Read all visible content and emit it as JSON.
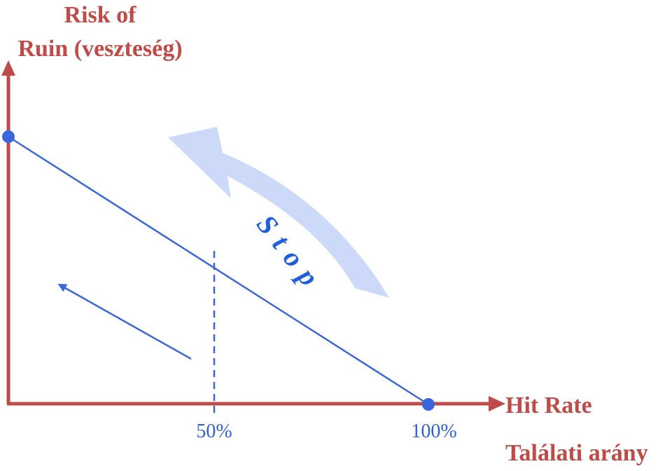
{
  "title": {
    "line1": "Risk of",
    "line2": "Ruin (veszteség)"
  },
  "x_axis": {
    "label": "Hit Rate",
    "sublabel": "Találati arány"
  },
  "ticks": [
    "50%",
    "100%"
  ],
  "annotation": "Stop"
}
